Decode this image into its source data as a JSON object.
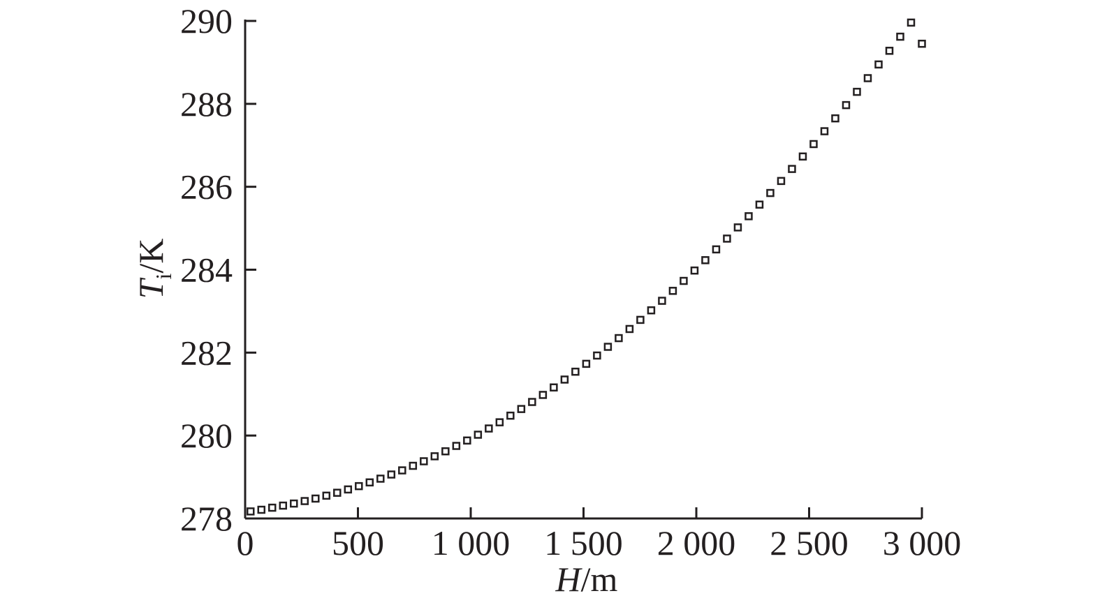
{
  "chart_data": {
    "type": "scatter",
    "title": "",
    "xlabel": {
      "var": "H",
      "unit": "/m"
    },
    "ylabel": {
      "var": "T",
      "sub": "i",
      "unit": "/K"
    },
    "xlim": [
      0,
      3000
    ],
    "ylim": [
      278,
      290
    ],
    "x_ticks": [
      0,
      500,
      1000,
      1500,
      2000,
      2500,
      3000
    ],
    "x_tick_labels": [
      "0",
      "500",
      "1 000",
      "1 500",
      "2 000",
      "2 500",
      "3 000"
    ],
    "y_ticks": [
      278,
      280,
      282,
      284,
      286,
      288,
      290
    ],
    "y_tick_labels": [
      "278",
      "280",
      "282",
      "284",
      "286",
      "288",
      "290"
    ],
    "grid": false,
    "legend": "none",
    "marker": "open-square",
    "series": [
      {
        "x": [
          24,
          72,
          120,
          168,
          216,
          264,
          312,
          360,
          408,
          456,
          504,
          552,
          600,
          648,
          696,
          744,
          792,
          840,
          888,
          936,
          984,
          1032,
          1080,
          1128,
          1176,
          1224,
          1272,
          1320,
          1368,
          1416,
          1464,
          1512,
          1560,
          1608,
          1656,
          1704,
          1752,
          1800,
          1848,
          1896,
          1944,
          1992,
          2040,
          2088,
          2136,
          2184,
          2232,
          2280,
          2328,
          2376,
          2424,
          2472,
          2520,
          2568,
          2616,
          2664,
          2712,
          2760,
          2808,
          2856,
          2904,
          2952,
          3000
        ],
        "y": [
          278.17,
          278.21,
          278.26,
          278.31,
          278.36,
          278.42,
          278.48,
          278.55,
          278.62,
          278.7,
          278.78,
          278.87,
          278.96,
          279.06,
          279.16,
          279.27,
          279.38,
          279.5,
          279.62,
          279.75,
          279.88,
          280.02,
          280.17,
          280.32,
          280.48,
          280.64,
          280.81,
          280.98,
          281.16,
          281.35,
          281.54,
          281.73,
          281.93,
          282.14,
          282.35,
          282.57,
          282.79,
          283.02,
          283.25,
          283.49,
          283.73,
          283.98,
          284.23,
          284.49,
          284.75,
          285.02,
          285.29,
          285.57,
          285.85,
          286.14,
          286.43,
          286.73,
          287.03,
          287.34,
          287.65,
          287.97,
          288.29,
          288.62,
          288.95,
          289.28,
          289.62,
          289.96,
          289.45
        ]
      }
    ]
  }
}
